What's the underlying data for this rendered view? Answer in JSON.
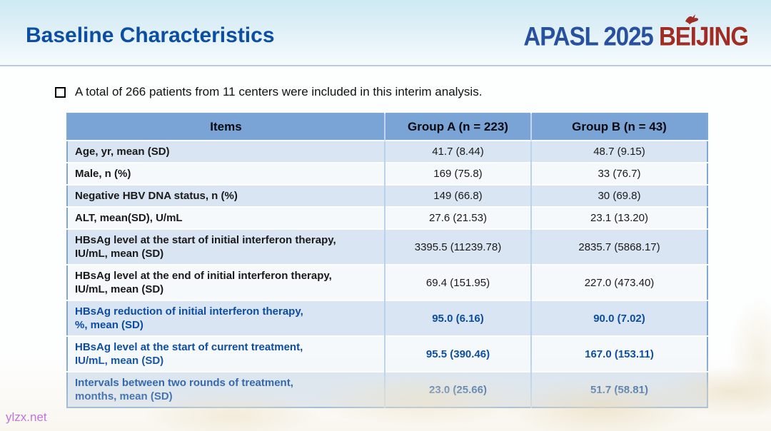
{
  "header": {
    "title": "Baseline Characteristics",
    "logo_primary": "APASL 2025 ",
    "logo_secondary": "BEIJING"
  },
  "bullet": {
    "icon": "square-outline-bullet",
    "text": "A total of 266 patients from 11 centers were included in this interim analysis."
  },
  "table": {
    "columns": [
      "Items",
      "Group A (n = 223)",
      "Group B (n = 43)"
    ],
    "rows": [
      {
        "item_lines": [
          "Age, yr, mean (SD)"
        ],
        "group_a": "41.7 (8.44)",
        "group_b": "48.7 (9.15)",
        "highlight": false
      },
      {
        "item_lines": [
          "Male, n (%)"
        ],
        "group_a": "169 (75.8)",
        "group_b": "33 (76.7)",
        "highlight": false
      },
      {
        "item_lines": [
          "Negative HBV DNA status, n (%)"
        ],
        "group_a": "149 (66.8)",
        "group_b": "30 (69.8)",
        "highlight": false
      },
      {
        "item_lines": [
          "ALT, mean(SD), U/mL"
        ],
        "group_a": "27.6 (21.53)",
        "group_b": "23.1 (13.20)",
        "highlight": false
      },
      {
        "item_lines": [
          "HBsAg level at the start of initial interferon therapy,",
          "IU/mL, mean (SD)"
        ],
        "group_a": "3395.5 (11239.78)",
        "group_b": "2835.7 (5868.17)",
        "highlight": false
      },
      {
        "item_lines": [
          "HBsAg level at the end of initial interferon therapy,",
          "IU/mL, mean (SD)"
        ],
        "group_a": "69.4 (151.95)",
        "group_b": "227.0 (473.40)",
        "highlight": false
      },
      {
        "item_lines": [
          "HBsAg reduction of initial interferon therapy,",
          "%, mean (SD)"
        ],
        "group_a": "95.0 (6.16)",
        "group_b": "90.0 (7.02)",
        "highlight": true
      },
      {
        "item_lines": [
          "HBsAg level at the start of current treatment,",
          "IU/mL, mean (SD)"
        ],
        "group_a": "95.5 (390.46)",
        "group_b": "167.0 (153.11)",
        "highlight": true
      },
      {
        "item_lines": [
          "Intervals between two rounds of treatment,",
          "months, mean (SD)"
        ],
        "group_a": "23.0 (25.66)",
        "group_b": "51.7 (58.81)",
        "highlight": true
      }
    ]
  },
  "footer": {
    "watermark": "ylzx.net"
  },
  "icons": {
    "bird_icon": "swallow-bird-over-letter-i"
  },
  "colors": {
    "title_blue": "#0b4ea2",
    "logo_blue": "#27509f",
    "logo_red": "#a02c24",
    "table_header_bg": "#7ba4d6",
    "row_light_blue": "#d9e5f2",
    "row_white": "#f5f9fc",
    "highlight_text_blue": "#0c4da2",
    "watermark_purple": "#a228dc",
    "header_band_top": "#cde9f3"
  }
}
